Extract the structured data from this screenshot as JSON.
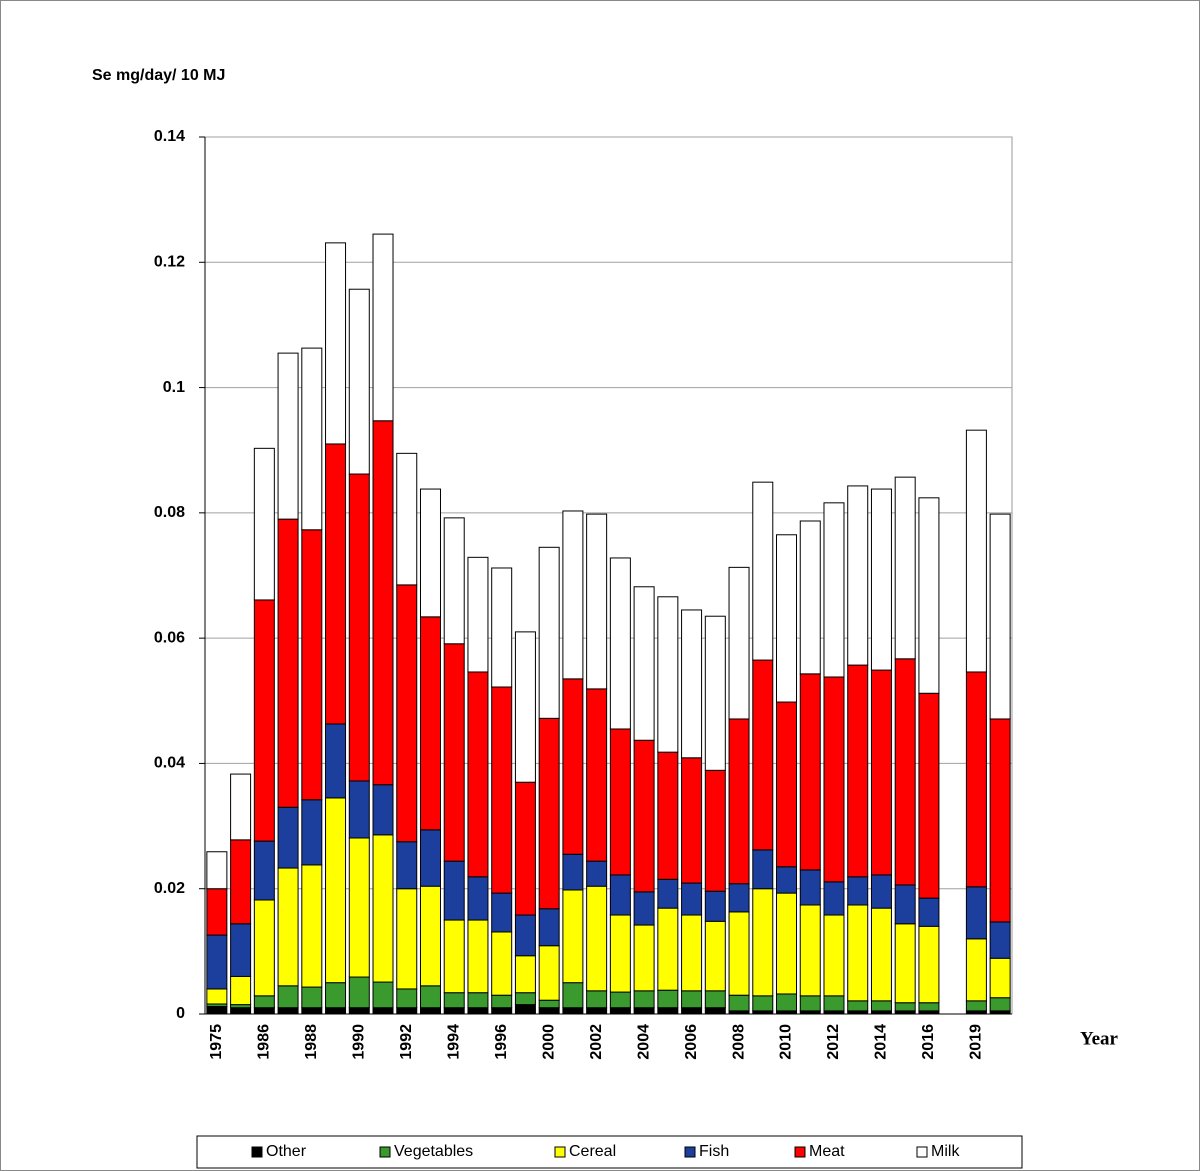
{
  "chart_data": {
    "type": "bar",
    "stacked": true,
    "y_label": "Se mg/day/ 10 MJ",
    "x_label": "Year",
    "categories": [
      "1975",
      null,
      "1986",
      null,
      "1988",
      null,
      "1990",
      null,
      "1992",
      null,
      "1994",
      null,
      "1996",
      null,
      "2000",
      null,
      "2002",
      null,
      "2004",
      null,
      "2006",
      null,
      "2008",
      null,
      "2010",
      null,
      "2012",
      null,
      "2014",
      null,
      "2016",
      null,
      "2019",
      null
    ],
    "series": [
      {
        "name": "Other",
        "color": "#000000",
        "values": [
          0.0012,
          0.001,
          0.001,
          0.001,
          0.001,
          0.001,
          0.001,
          0.001,
          0.001,
          0.001,
          0.001,
          0.001,
          0.001,
          0.0015,
          0.001,
          0.001,
          0.001,
          0.001,
          0.001,
          0.001,
          0.001,
          0.001,
          0.0005,
          0.0005,
          0.0005,
          0.0005,
          0.0005,
          0.0005,
          0.0005,
          0.0005,
          0.0005,
          null,
          0.0005,
          0.0005
        ]
      },
      {
        "name": "Vegetables",
        "color": "#3a9a2e",
        "values": [
          0.0004,
          0.0005,
          0.0019,
          0.0035,
          0.0033,
          0.004,
          0.0049,
          0.0041,
          0.003,
          0.0035,
          0.0024,
          0.0024,
          0.002,
          0.0019,
          0.0012,
          0.004,
          0.0027,
          0.0025,
          0.0027,
          0.0028,
          0.0027,
          0.0027,
          0.0025,
          0.0024,
          0.0027,
          0.0024,
          0.0024,
          0.0016,
          0.0016,
          0.0013,
          0.0013,
          null,
          0.0016,
          0.0021
        ]
      },
      {
        "name": "Cereal",
        "color": "#ffff00",
        "values": [
          0.0024,
          0.0045,
          0.0153,
          0.0188,
          0.0195,
          0.0295,
          0.0222,
          0.0235,
          0.016,
          0.0159,
          0.0116,
          0.0116,
          0.0101,
          0.0059,
          0.0087,
          0.0148,
          0.0167,
          0.0123,
          0.0105,
          0.0131,
          0.0121,
          0.0111,
          0.0133,
          0.0171,
          0.0161,
          0.0145,
          0.0129,
          0.0153,
          0.0148,
          0.0126,
          0.0122,
          null,
          0.0099,
          0.0063
        ]
      },
      {
        "name": "Fish",
        "color": "#1c3f9e",
        "values": [
          0.0086,
          0.0084,
          0.0094,
          0.0097,
          0.0104,
          0.0118,
          0.0091,
          0.008,
          0.0075,
          0.009,
          0.0094,
          0.0069,
          0.0062,
          0.0065,
          0.0059,
          0.0057,
          0.004,
          0.0064,
          0.0053,
          0.0046,
          0.0051,
          0.0048,
          0.0045,
          0.0062,
          0.0042,
          0.0056,
          0.0053,
          0.0045,
          0.0053,
          0.0062,
          0.0045,
          null,
          0.0083,
          0.0058
        ]
      },
      {
        "name": "Meat",
        "color": "#ff0000",
        "values": [
          0.0074,
          0.0134,
          0.0385,
          0.046,
          0.0431,
          0.0447,
          0.049,
          0.0581,
          0.041,
          0.034,
          0.0347,
          0.0327,
          0.0329,
          0.0212,
          0.0304,
          0.028,
          0.0275,
          0.0233,
          0.0242,
          0.0203,
          0.02,
          0.0193,
          0.0263,
          0.0303,
          0.0263,
          0.0313,
          0.0327,
          0.0338,
          0.0327,
          0.0361,
          0.0327,
          null,
          0.0343,
          0.0324
        ]
      },
      {
        "name": "Milk",
        "color": "#ffffff",
        "values": [
          0.0059,
          0.0105,
          0.0242,
          0.0265,
          0.029,
          0.0321,
          0.0295,
          0.0298,
          0.021,
          0.0204,
          0.0201,
          0.0183,
          0.019,
          0.024,
          0.0273,
          0.0268,
          0.0279,
          0.0273,
          0.0245,
          0.0248,
          0.0236,
          0.0246,
          0.0242,
          0.0284,
          0.0267,
          0.0244,
          0.0278,
          0.0286,
          0.0289,
          0.029,
          0.0312,
          null,
          0.0386,
          0.0327
        ]
      }
    ],
    "ylim": [
      0,
      0.14
    ],
    "yticks": [
      0,
      0.02,
      0.04,
      0.06,
      0.08,
      0.1,
      0.12,
      0.14
    ],
    "grid": true,
    "legend": "bottom"
  }
}
